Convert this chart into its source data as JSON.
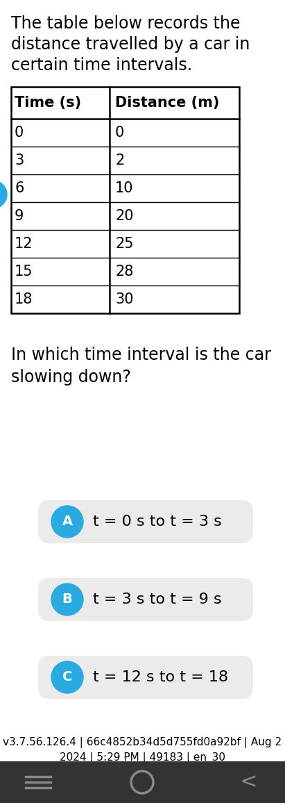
{
  "title_lines": [
    "The table below records the",
    "distance travelled by a car in",
    "certain time intervals."
  ],
  "table_headers": [
    "Time (s)",
    "Distance (m)"
  ],
  "table_data": [
    [
      "0",
      "0"
    ],
    [
      "3",
      "2"
    ],
    [
      "6",
      "10"
    ],
    [
      "9",
      "20"
    ],
    [
      "12",
      "25"
    ],
    [
      "15",
      "28"
    ],
    [
      "18",
      "30"
    ]
  ],
  "question_lines": [
    "In which time interval is the car",
    "slowing down?"
  ],
  "options": [
    {
      "label": "A",
      "text": "t = 0 s to t = 3 s"
    },
    {
      "label": "B",
      "text": "t = 3 s to t = 9 s"
    },
    {
      "label": "C",
      "text": "t = 12 s to t = 18"
    }
  ],
  "option_circle_color": "#29ABE2",
  "option_box_color": "#EBEBEB",
  "background_color": "#FFFFFF",
  "footer_text": "v3.7.56.126.4 | 66c4852b34d5d755fd0a92bf | Aug 2\n2024 | 5:29 PM | 49183 | en_30",
  "nav_bar_color": "#333333",
  "title_fontsize": 17,
  "question_fontsize": 17,
  "option_fontsize": 16,
  "table_header_fontsize": 15,
  "table_data_fontsize": 15,
  "footer_fontsize": 11
}
